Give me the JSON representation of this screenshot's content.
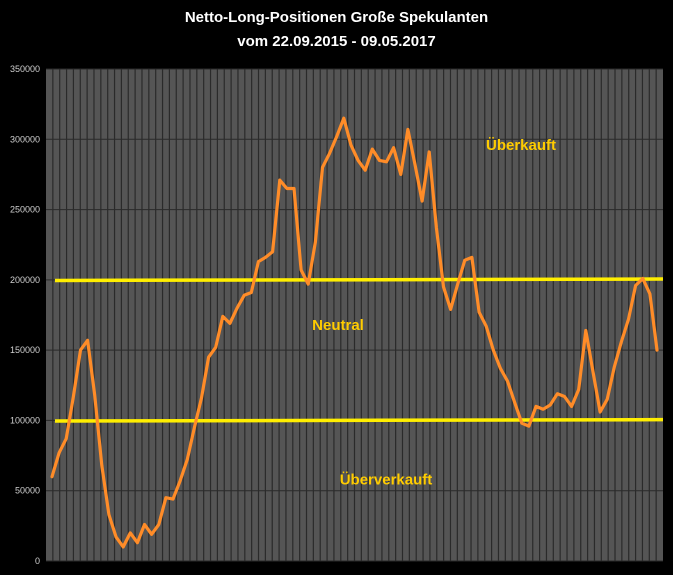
{
  "chart_data": {
    "type": "line",
    "title": "Netto-Long-Positionen  Große Spekulanten",
    "subtitle": "vom 22.09.2015 - 09.05.2017",
    "ylim": [
      0,
      350000
    ],
    "y_ticks": [
      "0",
      "50000",
      "100000",
      "150000",
      "200000",
      "250000",
      "300000",
      "350000"
    ],
    "series": [
      {
        "color": "#ff8c28",
        "values": [
          60000,
          77000,
          87000,
          117000,
          150000,
          157000,
          118000,
          68000,
          33000,
          17000,
          10000,
          20000,
          13000,
          26000,
          19000,
          26000,
          45000,
          44000,
          57000,
          72000,
          95000,
          116000,
          145000,
          152000,
          174000,
          169000,
          180000,
          189000,
          191000,
          213000,
          216000,
          220000,
          271000,
          265000,
          265000,
          207000,
          197000,
          227000,
          280000,
          290000,
          302000,
          315000,
          296000,
          285000,
          278000,
          293000,
          285000,
          284000,
          294000,
          275000,
          307000,
          282000,
          256000,
          291000,
          237000,
          195000,
          179000,
          197000,
          214000,
          216000,
          177000,
          167000,
          150000,
          137000,
          128000,
          113000,
          98000,
          96000,
          110000,
          108000,
          111000,
          119000,
          117000,
          110000,
          122000,
          164000,
          135000,
          106000,
          115000,
          138000,
          156000,
          172000,
          196000,
          201000,
          190000,
          150000
        ]
      }
    ],
    "reference_lines": [
      {
        "value": 100000,
        "color": "#ffee00"
      },
      {
        "value": 200000,
        "color": "#ffee00"
      }
    ],
    "annotations": [
      {
        "text": "Überkauft",
        "value": 296000
      },
      {
        "text": "Neutral",
        "value": 168000
      },
      {
        "text": "Überverkauft",
        "value": 58000
      }
    ],
    "grid": true,
    "colors": {
      "background": "#000000",
      "plot_background": "#555555",
      "gridline": "#2a2a2a",
      "annotation": "#ffcc00"
    }
  }
}
